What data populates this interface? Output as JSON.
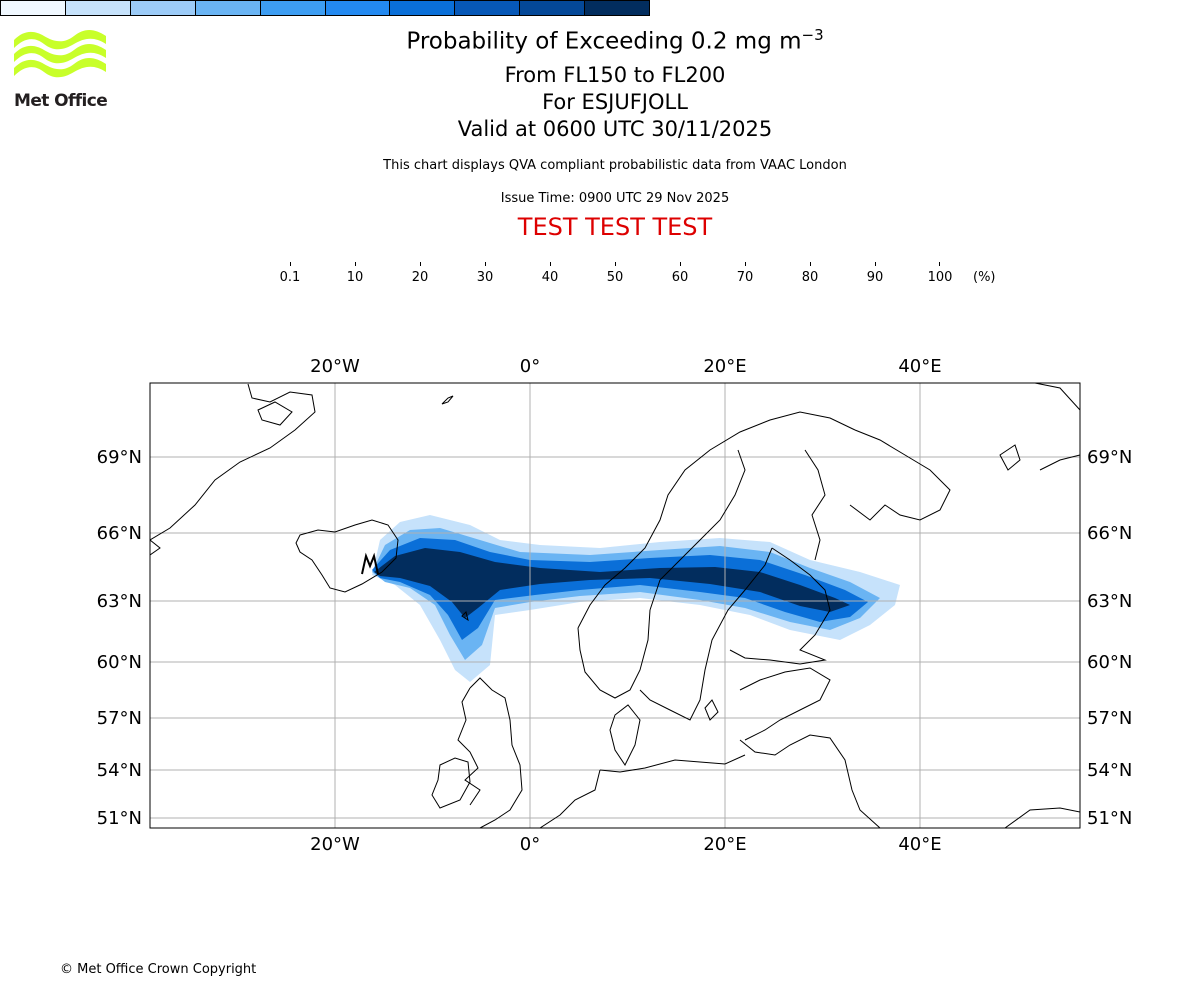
{
  "logo": {
    "text": "Met Office",
    "color": "#c8ff2a"
  },
  "title": {
    "main_prefix": "Probability of Exceeding 0.2 mg m",
    "main_exponent": "−3",
    "flight_levels": "From FL150 to FL200",
    "for_label": "For ESJUFJOLL",
    "valid": "Valid at 0600 UTC 30/11/2025"
  },
  "description": "This chart displays QVA compliant probabilistic data from VAAC London",
  "issue_time": "Issue Time: 0900 UTC 29 Nov 2025",
  "test_banner": "TEST TEST TEST",
  "colorbar": {
    "unit": "(%)",
    "ticks": [
      "0.1",
      "10",
      "20",
      "30",
      "40",
      "50",
      "60",
      "70",
      "80",
      "90",
      "100"
    ],
    "colors": [
      "#f0f8ff",
      "#c6e2fb",
      "#9ccbf7",
      "#6ab4f3",
      "#3d9df2",
      "#2389f0",
      "#0a6fd8",
      "#0758b7",
      "#044898",
      "#022d5e"
    ]
  },
  "map": {
    "lon_labels": [
      "20°W",
      "0°",
      "20°E",
      "40°E"
    ],
    "lat_labels": [
      "69°N",
      "66°N",
      "63°N",
      "60°N",
      "57°N",
      "54°N",
      "51°N"
    ],
    "gridline_color": "#b0b0b0"
  },
  "copyright": "© Met Office Crown Copyright"
}
